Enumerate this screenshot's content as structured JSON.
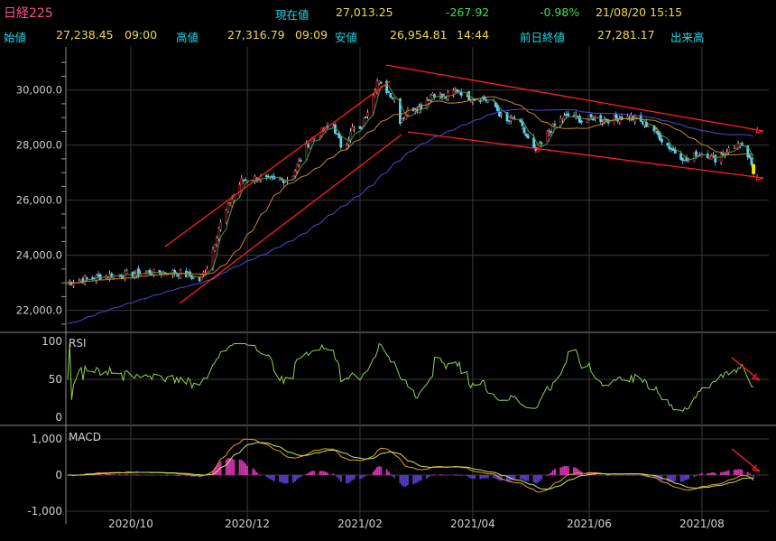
{
  "header": {
    "symbol": "日経225",
    "row1": {
      "current_label": "現在値",
      "current_value": "27,013.25",
      "change": "-267.92",
      "change_pct": "-0.98%",
      "datetime": "21/08/20  15:15"
    },
    "row2": {
      "open_label": "始値",
      "open_value": "27,238.45",
      "open_time": "09:00",
      "high_label": "高値",
      "high_value": "27,316.79",
      "high_time": "09:09",
      "low_label": "安値",
      "low_value": "26,954.81",
      "low_time": "14:44",
      "prev_label": "前日終値",
      "prev_value": "27,281.17",
      "volume_label": "出来高"
    }
  },
  "colors": {
    "background": "#000000",
    "grid": "#3a3a3a",
    "candle_up": "#f2f2f2",
    "candle_down": "#5fd0ef",
    "ma_short": "#3fa14a",
    "ma_mid": "#c8862c",
    "ma_long": "#4b4bd4",
    "rsi": "#8fd14f",
    "macd": "#e0a020",
    "signal": "#c8e06a",
    "hist_pos": "#cc33aa",
    "hist_neg": "#5a38c8",
    "trend": "#ff2020"
  },
  "chart_data": [
    {
      "type": "candlestick",
      "panel": "price",
      "title": "日経225",
      "y_ticks": [
        "30,000.0",
        "28,000.0",
        "26,000.0",
        "24,000.0",
        "22,000.0"
      ],
      "y_tick_values": [
        30000,
        28000,
        26000,
        24000,
        22000
      ],
      "ylim": [
        21300,
        31300
      ],
      "x_ticks": [
        "2020/10",
        "2020/12",
        "2021/02",
        "2021/04",
        "2021/06",
        "2021/08"
      ],
      "x_tick_days": [
        34,
        95,
        154,
        213,
        274,
        333
      ],
      "x_range_days": [
        0,
        368
      ],
      "dates_note": "days since 2020-08-27",
      "close_path": {
        "day": [
          0,
          20,
          40,
          55,
          65,
          70,
          75,
          80,
          84,
          88,
          92,
          100,
          110,
          118,
          123,
          128,
          134,
          140,
          145,
          150,
          154,
          158,
          163,
          168,
          172,
          175,
          180,
          186,
          192,
          198,
          205,
          212,
          218,
          224,
          230,
          236,
          242,
          246,
          252,
          258,
          264,
          270,
          276,
          282,
          290,
          296,
          302,
          306,
          312,
          318,
          322,
          326,
          330,
          335,
          340,
          346,
          352,
          356,
          360
        ],
        "close": [
          23000,
          23250,
          23350,
          23400,
          23250,
          23100,
          23700,
          25000,
          25600,
          26200,
          26700,
          26800,
          26700,
          26800,
          27500,
          28200,
          28500,
          28700,
          27800,
          28600,
          28500,
          29300,
          30300,
          30000,
          29700,
          28900,
          29300,
          29400,
          29900,
          29700,
          30000,
          29700,
          29700,
          29500,
          28800,
          29000,
          28200,
          27700,
          28400,
          28900,
          29100,
          28900,
          29000,
          28900,
          29000,
          29000,
          28800,
          28700,
          28200,
          27800,
          27600,
          27400,
          27700,
          27700,
          27500,
          27800,
          28000,
          27800,
          27020
        ]
      },
      "moving_averages": [
        {
          "line": "short",
          "note": "short-term moving average (green)"
        },
        {
          "line": "mid",
          "note": "mid-term moving average (orange)"
        },
        {
          "line": "long",
          "note": "long-term moving average (blue)"
        }
      ]
    },
    {
      "type": "line",
      "panel": "rsi",
      "title": "RSI",
      "y_ticks": [
        "100",
        "50",
        "0"
      ],
      "y_tick_values": [
        100,
        50,
        0
      ],
      "ylim": [
        0,
        100
      ]
    },
    {
      "type": "bar+line",
      "panel": "macd",
      "title": "MACD",
      "y_ticks": [
        "1,000",
        "0",
        "-1,000"
      ],
      "y_tick_values": [
        1000,
        0,
        -1000
      ],
      "ylim": [
        -1300,
        1300
      ]
    }
  ]
}
